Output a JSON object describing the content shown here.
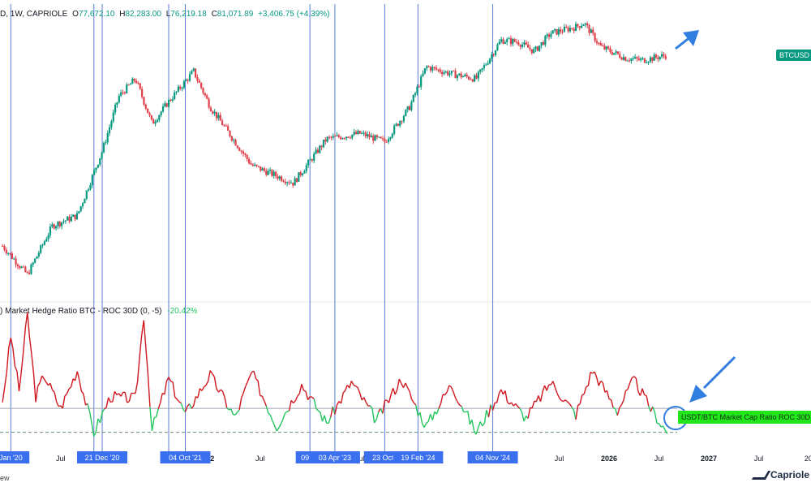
{
  "header": {
    "symbol_frag": "D, 1W, CAPRIOLE",
    "o_label": "O",
    "o_value": "77,672.10",
    "h_label": "H",
    "h_value": "82,283.00",
    "l_label": "L",
    "l_value": "76,219.18",
    "c_label": "C",
    "c_value": "81,071.89",
    "change": "+3,406.75 (+4.39%)"
  },
  "indicator_legend": {
    "name": ") Market Hedge Ratio BTC - ROC 30D (0, -5)",
    "value": "-20.42%"
  },
  "price_tag": "BTCUSD",
  "indicator_tag": "USDT/BTC Market Cap Ratio ROC 30D",
  "watermark": "ew",
  "brand": "Capriole",
  "colors": {
    "up": "#089981",
    "down": "#e0414b",
    "indicator_up": "#22c55e",
    "indicator_down": "#d0161e",
    "vline": "#5b7bd5",
    "label_bg": "#3a6ff0",
    "arrow": "#2f7ee0"
  },
  "chart_data": [
    {
      "type": "candlestick",
      "title": "BTCUSD 1W",
      "x_axis": [
        "Jan '20",
        "Jul",
        "22",
        "Jul",
        "Jul",
        "Jul",
        "2026",
        "Jul",
        "2027",
        "Jul",
        "20"
      ],
      "x_range": [
        "2019-12",
        "2028-01"
      ],
      "scale": "log",
      "y_range": [
        4000,
        130000
      ],
      "points": [
        {
          "date": "2019-12",
          "close": 7200
        },
        {
          "date": "2020-03",
          "close": 5000
        },
        {
          "date": "2020-06",
          "close": 9300
        },
        {
          "date": "2020-09",
          "close": 10600
        },
        {
          "date": "2020-12",
          "close": 24000
        },
        {
          "date": "2021-02",
          "close": 48000
        },
        {
          "date": "2021-04",
          "close": 60000
        },
        {
          "date": "2021-06",
          "close": 34000
        },
        {
          "date": "2021-08",
          "close": 45000
        },
        {
          "date": "2021-11",
          "close": 66000
        },
        {
          "date": "2022-01",
          "close": 42000
        },
        {
          "date": "2022-06",
          "close": 20000
        },
        {
          "date": "2022-11",
          "close": 16000
        },
        {
          "date": "2023-03",
          "close": 28000
        },
        {
          "date": "2023-07",
          "close": 30000
        },
        {
          "date": "2023-10",
          "close": 27000
        },
        {
          "date": "2024-01",
          "close": 42000
        },
        {
          "date": "2024-03",
          "close": 70000
        },
        {
          "date": "2024-06",
          "close": 64000
        },
        {
          "date": "2024-09",
          "close": 60000
        },
        {
          "date": "2024-12",
          "close": 98000
        },
        {
          "date": "2025-02",
          "close": 96000
        },
        {
          "date": "2025-04",
          "close": 85000
        },
        {
          "date": "2025-06",
          "close": 107000
        },
        {
          "date": "2025-09",
          "close": 116000
        },
        {
          "date": "2025-10",
          "close": 122000
        },
        {
          "date": "2025-12",
          "close": 90000
        },
        {
          "date": "2026-03",
          "close": 78000
        },
        {
          "date": "2026-05",
          "close": 76000
        },
        {
          "date": "2026-08",
          "close": 81072
        }
      ]
    },
    {
      "type": "line",
      "title": "Market Hedge Ratio BTC - ROC 30D (0, -5)",
      "y_range": [
        -25,
        80
      ],
      "ref_lines": [
        0,
        -20
      ],
      "points": [
        {
          "date": "2019-12",
          "value": 5
        },
        {
          "date": "2020-01",
          "value": 60
        },
        {
          "date": "2020-02",
          "value": 15
        },
        {
          "date": "2020-03",
          "value": 78
        },
        {
          "date": "2020-04",
          "value": 10
        },
        {
          "date": "2020-05",
          "value": 28
        },
        {
          "date": "2020-07",
          "value": 0
        },
        {
          "date": "2020-09",
          "value": 32
        },
        {
          "date": "2020-11",
          "value": -20
        },
        {
          "date": "2021-01",
          "value": 10
        },
        {
          "date": "2021-04",
          "value": 8
        },
        {
          "date": "2021-05",
          "value": 78
        },
        {
          "date": "2021-06",
          "value": -18
        },
        {
          "date": "2021-08",
          "value": 25
        },
        {
          "date": "2021-10",
          "value": -5
        },
        {
          "date": "2022-01",
          "value": 28
        },
        {
          "date": "2022-04",
          "value": -8
        },
        {
          "date": "2022-06",
          "value": 30
        },
        {
          "date": "2022-09",
          "value": -15
        },
        {
          "date": "2022-12",
          "value": 20
        },
        {
          "date": "2023-03",
          "value": -12
        },
        {
          "date": "2023-06",
          "value": 22
        },
        {
          "date": "2023-09",
          "value": -10
        },
        {
          "date": "2023-12",
          "value": 25
        },
        {
          "date": "2024-03",
          "value": -15
        },
        {
          "date": "2024-06",
          "value": 20
        },
        {
          "date": "2024-09",
          "value": -20
        },
        {
          "date": "2024-12",
          "value": 15
        },
        {
          "date": "2025-03",
          "value": -8
        },
        {
          "date": "2025-06",
          "value": 22
        },
        {
          "date": "2025-09",
          "value": -5
        },
        {
          "date": "2025-11",
          "value": 32
        },
        {
          "date": "2026-02",
          "value": -2
        },
        {
          "date": "2026-04",
          "value": 24
        },
        {
          "date": "2026-06",
          "value": 0
        },
        {
          "date": "2026-08",
          "value": -20.42
        }
      ]
    }
  ],
  "vertical_markers": [
    {
      "date": "2020-01",
      "label": "Jan '20"
    },
    {
      "date": "2020-11",
      "label": "02"
    },
    {
      "date": "2020-12",
      "label": "21 Dec '20"
    },
    {
      "date": "2021-08",
      "label": "02"
    },
    {
      "date": "2021-10",
      "label": "04 Oct '21"
    },
    {
      "date": "2023-01",
      "label": "09 Ja"
    },
    {
      "date": "2023-04",
      "label": "03 Apr '23"
    },
    {
      "date": "2023-10",
      "label": "23 Oct '"
    },
    {
      "date": "2024-02",
      "label": "19 Feb '24"
    },
    {
      "date": "2024-11",
      "label": "04 Nov '24"
    }
  ]
}
